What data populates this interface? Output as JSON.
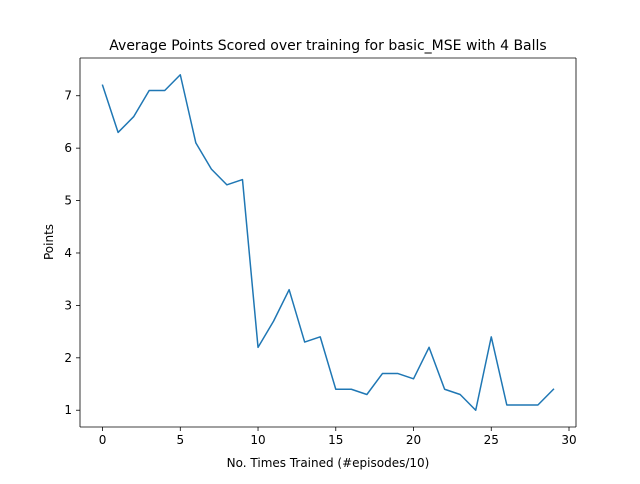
{
  "chart_data": {
    "type": "line",
    "title": "Average Points Scored over training for basic_MSE with 4 Balls",
    "xlabel": "No. Times Trained (#episodes/10)",
    "ylabel": "Points",
    "xlim": [
      -1.45,
      30.45
    ],
    "ylim": [
      0.68,
      7.72
    ],
    "xticks": [
      0,
      5,
      10,
      15,
      20,
      25,
      30
    ],
    "yticks": [
      1,
      2,
      3,
      4,
      5,
      6,
      7
    ],
    "grid": false,
    "series": [
      {
        "color": "#1f77b4",
        "x": [
          0,
          1,
          2,
          3,
          4,
          5,
          6,
          7,
          8,
          9,
          10,
          11,
          12,
          13,
          14,
          15,
          16,
          17,
          18,
          19,
          20,
          21,
          22,
          23,
          24,
          25,
          26,
          27,
          28,
          29
        ],
        "values": [
          7.2,
          6.3,
          6.6,
          7.1,
          7.1,
          7.4,
          6.1,
          5.6,
          5.3,
          5.4,
          2.2,
          2.7,
          3.3,
          2.3,
          2.4,
          1.4,
          1.4,
          1.3,
          1.7,
          1.7,
          1.6,
          2.2,
          1.4,
          1.3,
          1.0,
          2.4,
          1.1,
          1.1,
          1.1,
          1.4
        ]
      }
    ]
  }
}
